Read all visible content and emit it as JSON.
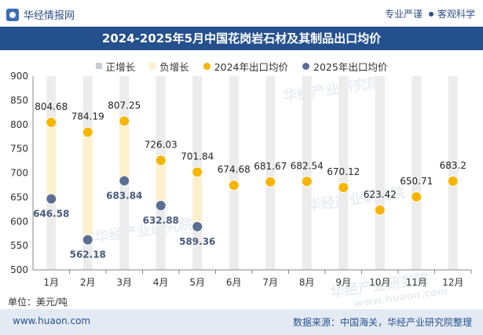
{
  "header": {
    "brand": "华经情报网",
    "slogan_left": "专业严谨",
    "slogan_right": "客观科学"
  },
  "watermarks": [
    "华经产业研究院",
    "华经产业研究院",
    "华经产业研究院",
    "华经产业研究院"
  ],
  "watermark_url": "www.huaon.com",
  "footer": {
    "site": "www.huaon.com",
    "source": "数据来源：中国海关，华经产业研究院整理"
  },
  "unit_label": "单位：美元/吨",
  "colors": {
    "title_bg": "#25508e",
    "pos_bar": "#c8cdd6",
    "neg_bar": "#fdf0cc",
    "s2024": "#f7b500",
    "s2025": "#5b6d93",
    "bg_bar": "#ececec"
  },
  "chart_data": {
    "type": "line",
    "title": "2024-2025年5月中国花岗岩石材及其制品出口均价",
    "categories": [
      "1月",
      "2月",
      "3月",
      "4月",
      "5月",
      "6月",
      "7月",
      "8月",
      "9月",
      "10月",
      "11月",
      "12月"
    ],
    "ylim": [
      500,
      900
    ],
    "yticks": [
      500,
      550,
      600,
      650,
      700,
      750,
      800,
      850,
      900
    ],
    "legend": [
      "正增长",
      "负增长",
      "2024年出口均价",
      "2025年出口均价"
    ],
    "series": [
      {
        "name": "2024年出口均价",
        "values": [
          804.68,
          784.19,
          807.25,
          726.03,
          701.84,
          674.68,
          681.67,
          682.54,
          670.12,
          623.42,
          650.71,
          683.2
        ],
        "labels": [
          "804.68",
          "784.19",
          "807.25",
          "726.03",
          "701.84",
          "674.68",
          "681.67",
          "682.54",
          "670.12",
          "623.42",
          "650.71",
          "683.2"
        ]
      },
      {
        "name": "2025年出口均价",
        "values": [
          646.58,
          562.18,
          683.84,
          632.88,
          589.36,
          null,
          null,
          null,
          null,
          null,
          null,
          null
        ],
        "labels": [
          "646.58",
          "562.18",
          "683.84",
          "632.88",
          "589.36"
        ]
      }
    ]
  }
}
